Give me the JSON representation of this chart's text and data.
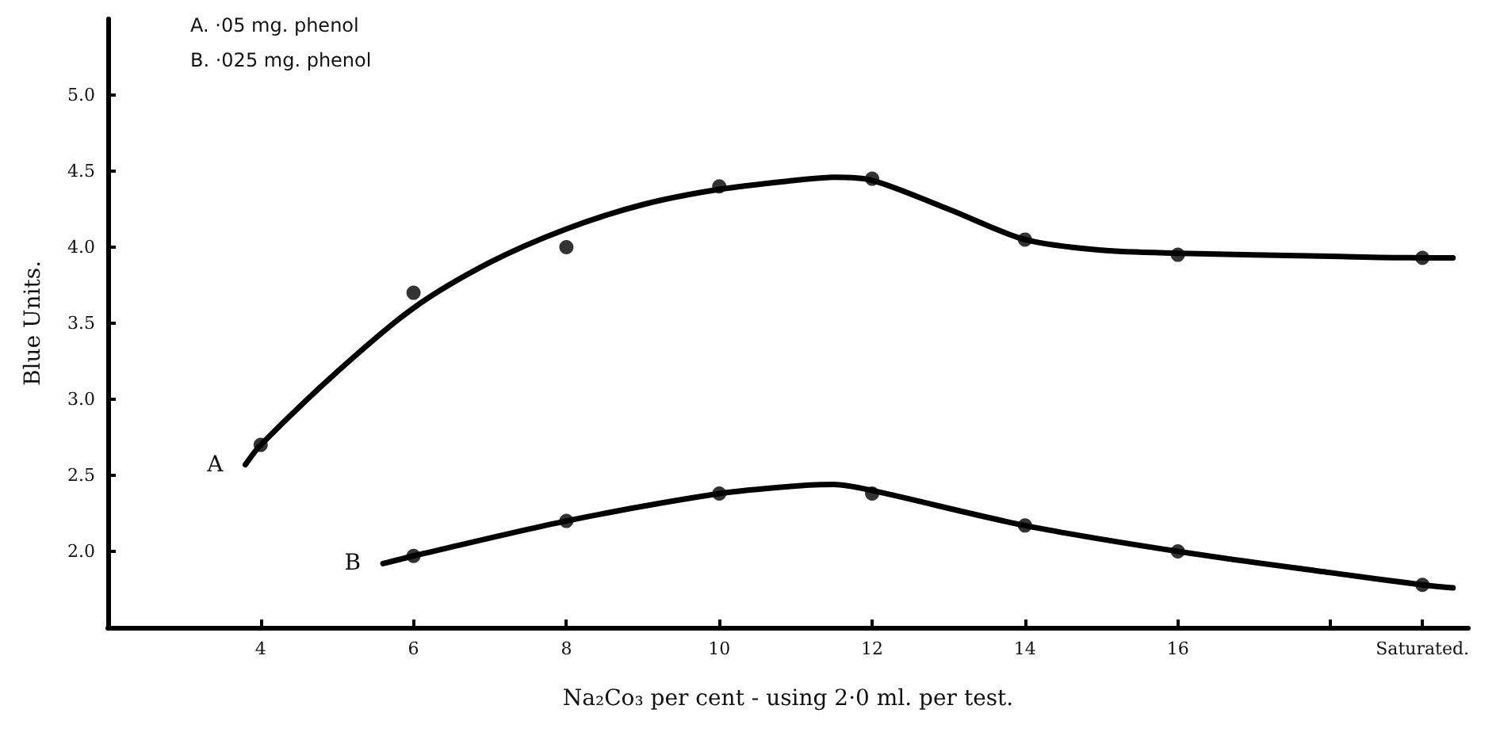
{
  "chart_data": {
    "type": "scatter",
    "xlabel": "Na₂Co₃ per cent - using 2·0 ml. per test.",
    "ylabel": "Blue Units.",
    "annotations": [
      "A. ·05 mg. phenol",
      "B. ·025 mg. phenol"
    ],
    "xlim": [
      2,
      19.8
    ],
    "ylim": [
      1.5,
      5.5
    ],
    "xticks": [
      4,
      6,
      8,
      10,
      12,
      14,
      16,
      {
        "value": 18,
        "label": null
      },
      {
        "value": 19.2,
        "label": "Saturated."
      }
    ],
    "yticks": [
      {
        "value": 2,
        "label": "2.0"
      },
      {
        "value": 2.5,
        "label": "2.5"
      },
      {
        "value": 3,
        "label": "3.0"
      },
      {
        "value": 3.5,
        "label": "3.5"
      },
      {
        "value": 4,
        "label": "4.0"
      },
      {
        "value": 4.5,
        "label": "4.5"
      },
      {
        "value": 5,
        "label": "5.0"
      }
    ],
    "grid": false,
    "marker": "circle",
    "series": [
      {
        "color": "#000000",
        "x": [
          4,
          6,
          8,
          10,
          12,
          14,
          16,
          19.2
        ],
        "values": [
          2.7,
          3.7,
          4.0,
          4.4,
          4.45,
          4.05,
          3.95,
          3.93
        ]
      },
      {
        "color": "#000000",
        "x": [
          6,
          8,
          10,
          12,
          14,
          16,
          19.2
        ],
        "values": [
          1.97,
          2.2,
          2.38,
          2.38,
          2.17,
          2.0,
          1.78
        ]
      },
      {
        "type": "line",
        "name": "A",
        "color": "#000000",
        "marker": "none",
        "line_style": "solid",
        "x": [
          3.8,
          4,
          5,
          6,
          7,
          8,
          9,
          10,
          11,
          11.5,
          12,
          13,
          14,
          15,
          16,
          18,
          19.2,
          19.6
        ],
        "values": [
          2.57,
          2.7,
          3.18,
          3.6,
          3.9,
          4.12,
          4.28,
          4.38,
          4.44,
          4.46,
          4.44,
          4.25,
          4.05,
          3.98,
          3.96,
          3.94,
          3.93,
          3.93
        ]
      },
      {
        "type": "line",
        "name": "B",
        "color": "#000000",
        "marker": "none",
        "line_style": "solid",
        "x": [
          5.6,
          6,
          8,
          10,
          11,
          11.5,
          12,
          14,
          16,
          18,
          19.2,
          19.6
        ],
        "values": [
          1.92,
          1.97,
          2.2,
          2.38,
          2.43,
          2.44,
          2.4,
          2.17,
          2.0,
          1.86,
          1.78,
          1.76
        ]
      }
    ]
  }
}
